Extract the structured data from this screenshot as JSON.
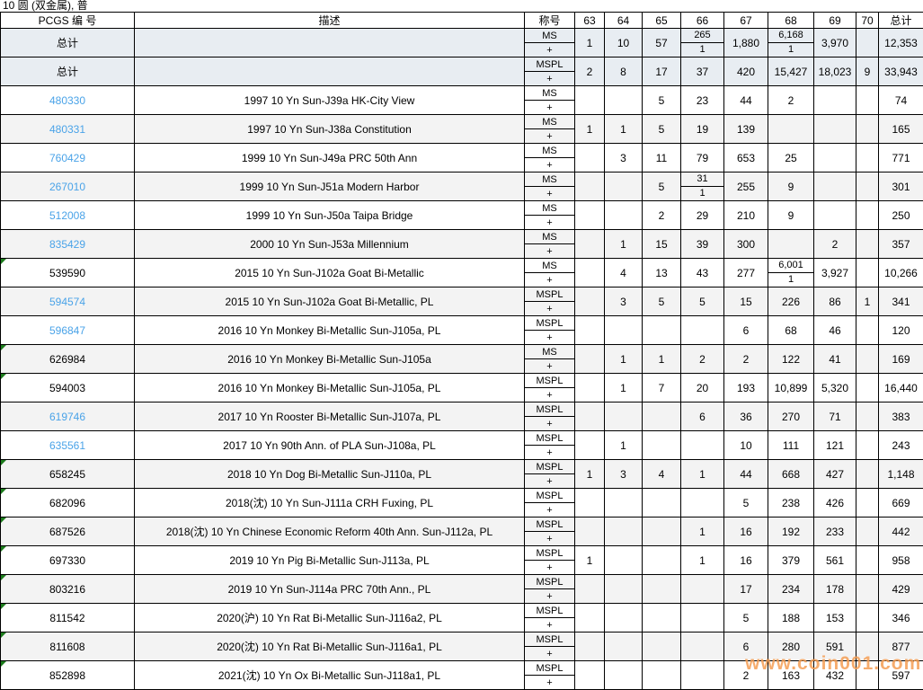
{
  "page_title": "10 圆 (双金属), 普",
  "watermark": "www.coin001.com",
  "colors": {
    "link_blue": "#4aa3e8",
    "marker_green": "#1c7c1c",
    "watermark_orange": "#f49e54",
    "total_row_bg": "#e8edf2",
    "alt_row_bg": "#f3f3f3"
  },
  "table": {
    "headers": {
      "pcgs": "PCGS 编 号",
      "desc": "描述",
      "designation": "称号",
      "grades": [
        "63",
        "64",
        "65",
        "66",
        "67",
        "68",
        "69",
        "70"
      ],
      "total": "总计"
    },
    "plus_label": "+",
    "rows": [
      {
        "pcgs": "总计",
        "link": false,
        "marker": false,
        "total_row": true,
        "desc": "",
        "designation": "MS",
        "grades": [
          "1",
          "10",
          "57",
          {
            "top": "265",
            "bottom": "1"
          },
          "1,880",
          {
            "top": "6,168",
            "bottom": "1"
          },
          "3,970",
          ""
        ],
        "total": "12,353"
      },
      {
        "pcgs": "总计",
        "link": false,
        "marker": false,
        "total_row": true,
        "desc": "",
        "designation": "MSPL",
        "grades": [
          "2",
          "8",
          "17",
          "37",
          "420",
          "15,427",
          "18,023",
          "9"
        ],
        "total": "33,943"
      },
      {
        "pcgs": "480330",
        "link": true,
        "marker": false,
        "desc": "1997 10 Yn Sun-J39a HK-City View",
        "designation": "MS",
        "grades": [
          "",
          "",
          "5",
          "23",
          "44",
          "2",
          "",
          ""
        ],
        "total": "74"
      },
      {
        "pcgs": "480331",
        "link": true,
        "marker": false,
        "desc": "1997 10 Yn Sun-J38a Constitution",
        "designation": "MS",
        "grades": [
          "1",
          "1",
          "5",
          "19",
          "139",
          "",
          "",
          ""
        ],
        "total": "165"
      },
      {
        "pcgs": "760429",
        "link": true,
        "marker": false,
        "desc": "1999 10 Yn Sun-J49a PRC 50th Ann",
        "designation": "MS",
        "grades": [
          "",
          "3",
          "11",
          "79",
          "653",
          "25",
          "",
          ""
        ],
        "total": "771"
      },
      {
        "pcgs": "267010",
        "link": true,
        "marker": false,
        "desc": "1999 10 Yn Sun-J51a Modern Harbor",
        "designation": "MS",
        "grades": [
          "",
          "",
          "5",
          {
            "top": "31",
            "bottom": "1"
          },
          "255",
          "9",
          "",
          ""
        ],
        "total": "301"
      },
      {
        "pcgs": "512008",
        "link": true,
        "marker": false,
        "desc": "1999 10 Yn Sun-J50a Taipa Bridge",
        "designation": "MS",
        "grades": [
          "",
          "",
          "2",
          "29",
          "210",
          "9",
          "",
          ""
        ],
        "total": "250"
      },
      {
        "pcgs": "835429",
        "link": true,
        "marker": false,
        "desc": "2000 10 Yn Sun-J53a Millennium",
        "designation": "MS",
        "grades": [
          "",
          "1",
          "15",
          "39",
          "300",
          "",
          "2",
          ""
        ],
        "total": "357"
      },
      {
        "pcgs": "539590",
        "link": false,
        "marker": true,
        "desc": "2015 10 Yn Sun-J102a Goat Bi-Metallic",
        "designation": "MS",
        "grades": [
          "",
          "4",
          "13",
          "43",
          "277",
          {
            "top": "6,001",
            "bottom": "1"
          },
          "3,927",
          ""
        ],
        "total": "10,266"
      },
      {
        "pcgs": "594574",
        "link": true,
        "marker": false,
        "desc": "2015 10 Yn Sun-J102a Goat Bi-Metallic, PL",
        "designation": "MSPL",
        "grades": [
          "",
          "3",
          "5",
          "5",
          "15",
          "226",
          "86",
          "1"
        ],
        "total": "341"
      },
      {
        "pcgs": "596847",
        "link": true,
        "marker": false,
        "desc": "2016 10 Yn Monkey Bi-Metallic Sun-J105a, PL",
        "designation": "MSPL",
        "grades": [
          "",
          "",
          "",
          "",
          "6",
          "68",
          "46",
          ""
        ],
        "total": "120"
      },
      {
        "pcgs": "626984",
        "link": false,
        "marker": true,
        "desc": "2016 10 Yn Monkey Bi-Metallic Sun-J105a",
        "designation": "MS",
        "grades": [
          "",
          "1",
          "1",
          "2",
          "2",
          "122",
          "41",
          ""
        ],
        "total": "169"
      },
      {
        "pcgs": "594003",
        "link": false,
        "marker": true,
        "desc": "2016 10 Yn Monkey Bi-Metallic Sun-J105a, PL",
        "designation": "MSPL",
        "grades": [
          "",
          "1",
          "7",
          "20",
          "193",
          "10,899",
          "5,320",
          ""
        ],
        "total": "16,440"
      },
      {
        "pcgs": "619746",
        "link": true,
        "marker": false,
        "desc": "2017 10 Yn Rooster Bi-Metallic Sun-J107a, PL",
        "designation": "MSPL",
        "grades": [
          "",
          "",
          "",
          "6",
          "36",
          "270",
          "71",
          ""
        ],
        "total": "383"
      },
      {
        "pcgs": "635561",
        "link": true,
        "marker": false,
        "desc": "2017 10 Yn 90th Ann. of PLA Sun-J108a, PL",
        "designation": "MSPL",
        "grades": [
          "",
          "1",
          "",
          "",
          "10",
          "111",
          "121",
          ""
        ],
        "total": "243"
      },
      {
        "pcgs": "658245",
        "link": false,
        "marker": true,
        "desc": "2018 10 Yn Dog Bi-Metallic Sun-J110a, PL",
        "designation": "MSPL",
        "grades": [
          "1",
          "3",
          "4",
          "1",
          "44",
          "668",
          "427",
          ""
        ],
        "total": "1,148"
      },
      {
        "pcgs": "682096",
        "link": false,
        "marker": true,
        "desc": "2018(沈) 10 Yn Sun-J111a CRH Fuxing, PL",
        "designation": "MSPL",
        "grades": [
          "",
          "",
          "",
          "",
          "5",
          "238",
          "426",
          ""
        ],
        "total": "669"
      },
      {
        "pcgs": "687526",
        "link": false,
        "marker": true,
        "desc": "2018(沈) 10 Yn Chinese Economic Reform 40th Ann. Sun-J112a, PL",
        "designation": "MSPL",
        "grades": [
          "",
          "",
          "",
          "1",
          "16",
          "192",
          "233",
          ""
        ],
        "total": "442"
      },
      {
        "pcgs": "697330",
        "link": false,
        "marker": true,
        "desc": "2019 10 Yn Pig Bi-Metallic Sun-J113a, PL",
        "designation": "MSPL",
        "grades": [
          "1",
          "",
          "",
          "1",
          "16",
          "379",
          "561",
          ""
        ],
        "total": "958"
      },
      {
        "pcgs": "803216",
        "link": false,
        "marker": true,
        "desc": "2019 10 Yn Sun-J114a PRC 70th Ann., PL",
        "designation": "MSPL",
        "grades": [
          "",
          "",
          "",
          "",
          "17",
          "234",
          "178",
          ""
        ],
        "total": "429"
      },
      {
        "pcgs": "811542",
        "link": false,
        "marker": true,
        "desc": "2020(沪) 10 Yn Rat Bi-Metallic Sun-J116a2, PL",
        "designation": "MSPL",
        "grades": [
          "",
          "",
          "",
          "",
          "5",
          "188",
          "153",
          ""
        ],
        "total": "346"
      },
      {
        "pcgs": "811608",
        "link": false,
        "marker": true,
        "desc": "2020(沈) 10 Yn Rat Bi-Metallic Sun-J116a1, PL",
        "designation": "MSPL",
        "grades": [
          "",
          "",
          "",
          "",
          "6",
          "280",
          "591",
          ""
        ],
        "total": "877"
      },
      {
        "pcgs": "852898",
        "link": false,
        "marker": true,
        "desc": "2021(沈) 10 Yn Ox Bi-Metallic Sun-J118a1, PL",
        "designation": "MSPL",
        "grades": [
          "",
          "",
          "",
          "",
          "2",
          "163",
          "432",
          ""
        ],
        "total": "597"
      }
    ]
  }
}
